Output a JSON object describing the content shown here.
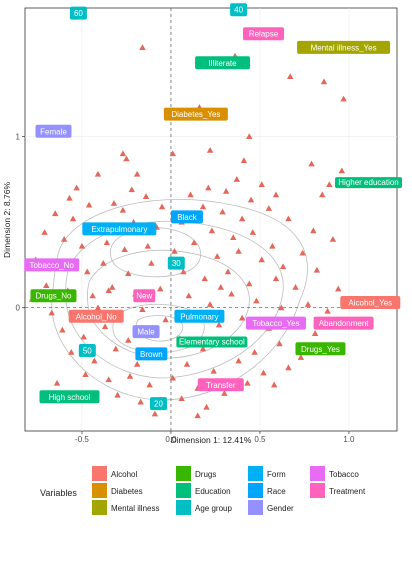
{
  "chart_data": {
    "type": "scatter",
    "title": "",
    "xlabel": "Dimension 1: 12.41%",
    "ylabel": "Dimension 2: 8.76%",
    "xlim": [
      -0.82,
      1.27
    ],
    "ylim": [
      -0.72,
      1.75
    ],
    "x_ticks": [
      -0.5,
      0,
      0.5,
      1
    ],
    "y_ticks": [
      0,
      1
    ],
    "x_tick_labels": [
      "-0.5",
      "0.0",
      "0.5",
      "1.0"
    ],
    "y_tick_labels": [
      "0",
      "1"
    ],
    "grid": true,
    "legend_position": "bottom",
    "legend_title": "Variables",
    "legend": [
      {
        "name": "Alcohol",
        "color": "#F8766D"
      },
      {
        "name": "Diabetes",
        "color": "#D89000"
      },
      {
        "name": "Mental illness",
        "color": "#A3A500"
      },
      {
        "name": "Drugs",
        "color": "#39B600"
      },
      {
        "name": "Education",
        "color": "#00BF7D"
      },
      {
        "name": "Age group",
        "color": "#00BFC4"
      },
      {
        "name": "Form",
        "color": "#00B0F6"
      },
      {
        "name": "Race",
        "color": "#00A5FF"
      },
      {
        "name": "Gender",
        "color": "#9590FF"
      },
      {
        "name": "Tobacco",
        "color": "#E76BF3"
      },
      {
        "name": "Treatment",
        "color": "#FF62BC"
      }
    ],
    "categories_plotted": [
      {
        "label": "60",
        "group": "Age group",
        "x": -0.52,
        "y": 1.72
      },
      {
        "label": "40",
        "group": "Age group",
        "x": 0.38,
        "y": 1.74
      },
      {
        "label": "Relapse",
        "group": "Treatment",
        "x": 0.52,
        "y": 1.6
      },
      {
        "label": "Mental illness_Yes",
        "group": "Mental illness",
        "x": 0.97,
        "y": 1.52
      },
      {
        "label": "Illiterate",
        "group": "Education",
        "x": 0.29,
        "y": 1.43
      },
      {
        "label": "Diabetes_Yes",
        "group": "Diabetes",
        "x": 0.14,
        "y": 1.13
      },
      {
        "label": "Female",
        "group": "Gender",
        "x": -0.66,
        "y": 1.03
      },
      {
        "label": "Higher education",
        "group": "Education",
        "x": 1.11,
        "y": 0.73
      },
      {
        "label": "Black",
        "group": "Race",
        "x": 0.09,
        "y": 0.53
      },
      {
        "label": "Extrapulmonary",
        "group": "Form",
        "x": -0.29,
        "y": 0.46
      },
      {
        "label": "30",
        "group": "Age group",
        "x": 0.03,
        "y": 0.26
      },
      {
        "label": "Tobacco_No",
        "group": "Tobacco",
        "x": -0.67,
        "y": 0.25
      },
      {
        "label": "Drugs_No",
        "group": "Drugs",
        "x": -0.66,
        "y": 0.07
      },
      {
        "label": "New",
        "group": "Treatment",
        "x": -0.15,
        "y": 0.07
      },
      {
        "label": "Alcohol_Yes",
        "group": "Alcohol",
        "x": 1.12,
        "y": 0.03
      },
      {
        "label": "Alcohol_No",
        "group": "Alcohol",
        "x": -0.42,
        "y": -0.05
      },
      {
        "label": "Pulmonary",
        "group": "Form",
        "x": 0.16,
        "y": -0.05
      },
      {
        "label": "Tobacco_Yes",
        "group": "Tobacco",
        "x": 0.59,
        "y": -0.09
      },
      {
        "label": "Abandonment",
        "group": "Treatment",
        "x": 0.97,
        "y": -0.09
      },
      {
        "label": "Male",
        "group": "Gender",
        "x": -0.14,
        "y": -0.14
      },
      {
        "label": "Elementary school",
        "group": "Education",
        "x": 0.23,
        "y": -0.2
      },
      {
        "label": "Drugs_Yes",
        "group": "Drugs",
        "x": 0.84,
        "y": -0.24
      },
      {
        "label": "50",
        "group": "Age group",
        "x": -0.47,
        "y": -0.25
      },
      {
        "label": "Brown",
        "group": "Race",
        "x": -0.11,
        "y": -0.27
      },
      {
        "label": "High school",
        "group": "Education",
        "x": -0.57,
        "y": -0.52
      },
      {
        "label": "Transfer",
        "group": "Treatment",
        "x": 0.28,
        "y": -0.45
      },
      {
        "label": "20",
        "group": "Age group",
        "x": -0.07,
        "y": -0.56
      }
    ],
    "individuals": [
      [
        -0.16,
        1.52
      ],
      [
        0.36,
        1.47
      ],
      [
        0.67,
        1.35
      ],
      [
        0.86,
        1.32
      ],
      [
        0.97,
        1.22
      ],
      [
        0.44,
        1.0
      ],
      [
        -0.27,
        0.9
      ],
      [
        -0.25,
        0.87
      ],
      [
        0.01,
        0.9
      ],
      [
        0.22,
        0.92
      ],
      [
        0.79,
        0.84
      ],
      [
        0.96,
        0.8
      ],
      [
        0.89,
        0.72
      ],
      [
        0.85,
        0.66
      ],
      [
        -0.41,
        0.78
      ],
      [
        -0.19,
        0.78
      ],
      [
        0.37,
        0.75
      ],
      [
        0.51,
        0.72
      ],
      [
        -0.53,
        0.7
      ],
      [
        -0.22,
        0.69
      ],
      [
        -0.14,
        0.65
      ],
      [
        0.11,
        0.66
      ],
      [
        0.21,
        0.7
      ],
      [
        0.31,
        0.68
      ],
      [
        0.45,
        0.63
      ],
      [
        0.59,
        0.66
      ],
      [
        -0.57,
        0.64
      ],
      [
        -0.46,
        0.6
      ],
      [
        -0.32,
        0.61
      ],
      [
        -0.05,
        0.59
      ],
      [
        0.18,
        0.59
      ],
      [
        0.29,
        0.56
      ],
      [
        0.4,
        0.52
      ],
      [
        0.55,
        0.58
      ],
      [
        0.66,
        0.52
      ],
      [
        -0.65,
        0.55
      ],
      [
        -0.55,
        0.52
      ],
      [
        -0.42,
        0.48
      ],
      [
        -0.21,
        0.5
      ],
      [
        -0.08,
        0.47
      ],
      [
        0.06,
        0.5
      ],
      [
        0.23,
        0.45
      ],
      [
        0.35,
        0.41
      ],
      [
        0.46,
        0.44
      ],
      [
        0.57,
        0.36
      ],
      [
        0.8,
        0.45
      ],
      [
        0.91,
        0.4
      ],
      [
        -0.71,
        0.44
      ],
      [
        -0.6,
        0.4
      ],
      [
        -0.5,
        0.36
      ],
      [
        -0.36,
        0.38
      ],
      [
        -0.26,
        0.34
      ],
      [
        -0.13,
        0.36
      ],
      [
        0.02,
        0.33
      ],
      [
        0.13,
        0.38
      ],
      [
        0.26,
        0.3
      ],
      [
        0.38,
        0.33
      ],
      [
        0.51,
        0.28
      ],
      [
        0.63,
        0.24
      ],
      [
        0.74,
        0.32
      ],
      [
        -0.76,
        0.28
      ],
      [
        -0.62,
        0.24
      ],
      [
        -0.47,
        0.21
      ],
      [
        -0.38,
        0.26
      ],
      [
        -0.24,
        0.2
      ],
      [
        -0.11,
        0.26
      ],
      [
        0.07,
        0.21
      ],
      [
        0.19,
        0.17
      ],
      [
        0.32,
        0.21
      ],
      [
        0.44,
        0.14
      ],
      [
        0.59,
        0.17
      ],
      [
        0.7,
        0.12
      ],
      [
        0.82,
        0.22
      ],
      [
        0.94,
        0.11
      ],
      [
        -0.7,
        0.13
      ],
      [
        -0.58,
        0.1
      ],
      [
        -0.44,
        0.07
      ],
      [
        -0.33,
        0.12
      ],
      [
        -0.2,
        0.08
      ],
      [
        -0.06,
        0.11
      ],
      [
        0.1,
        0.07
      ],
      [
        0.22,
        0.02
      ],
      [
        0.34,
        0.08
      ],
      [
        0.48,
        0.04
      ],
      [
        0.62,
        0.0
      ],
      [
        0.77,
        0.02
      ],
      [
        0.88,
        -0.02
      ],
      [
        -0.67,
        -0.03
      ],
      [
        -0.55,
        -0.06
      ],
      [
        -0.41,
        0.0
      ],
      [
        -0.29,
        -0.04
      ],
      [
        -0.16,
        -0.01
      ],
      [
        -0.03,
        -0.07
      ],
      [
        0.12,
        -0.03
      ],
      [
        0.27,
        -0.1
      ],
      [
        0.4,
        -0.06
      ],
      [
        0.55,
        -0.12
      ],
      [
        0.69,
        -0.08
      ],
      [
        0.81,
        -0.15
      ],
      [
        0.93,
        -0.09
      ],
      [
        -0.61,
        -0.13
      ],
      [
        -0.49,
        -0.17
      ],
      [
        -0.37,
        -0.11
      ],
      [
        -0.24,
        -0.19
      ],
      [
        -0.1,
        -0.14
      ],
      [
        0.05,
        -0.18
      ],
      [
        0.18,
        -0.24
      ],
      [
        0.33,
        -0.19
      ],
      [
        0.47,
        -0.26
      ],
      [
        0.61,
        -0.21
      ],
      [
        0.73,
        -0.29
      ],
      [
        -0.56,
        -0.26
      ],
      [
        -0.43,
        -0.31
      ],
      [
        -0.31,
        -0.24
      ],
      [
        -0.19,
        -0.33
      ],
      [
        -0.05,
        -0.28
      ],
      [
        0.09,
        -0.33
      ],
      [
        0.24,
        -0.37
      ],
      [
        0.38,
        -0.31
      ],
      [
        0.52,
        -0.38
      ],
      [
        0.66,
        -0.35
      ],
      [
        -0.48,
        -0.39
      ],
      [
        -0.35,
        -0.42
      ],
      [
        -0.23,
        -0.4
      ],
      [
        -0.12,
        -0.45
      ],
      [
        0.01,
        -0.41
      ],
      [
        0.15,
        -0.47
      ],
      [
        0.3,
        -0.5
      ],
      [
        0.43,
        -0.44
      ],
      [
        -0.3,
        -0.51
      ],
      [
        -0.17,
        -0.55
      ],
      [
        0.06,
        -0.53
      ],
      [
        0.2,
        -0.58
      ],
      [
        -0.64,
        -0.44
      ],
      [
        0.58,
        -0.45
      ],
      [
        -0.78,
        0.05
      ],
      [
        1.0,
        0.05
      ],
      [
        0.16,
        1.17
      ],
      [
        -0.35,
        0.1
      ],
      [
        0.28,
        0.12
      ],
      [
        -0.27,
        0.57
      ],
      [
        0.41,
        0.86
      ],
      [
        0.15,
        -0.63
      ],
      [
        -0.09,
        -0.62
      ]
    ]
  }
}
